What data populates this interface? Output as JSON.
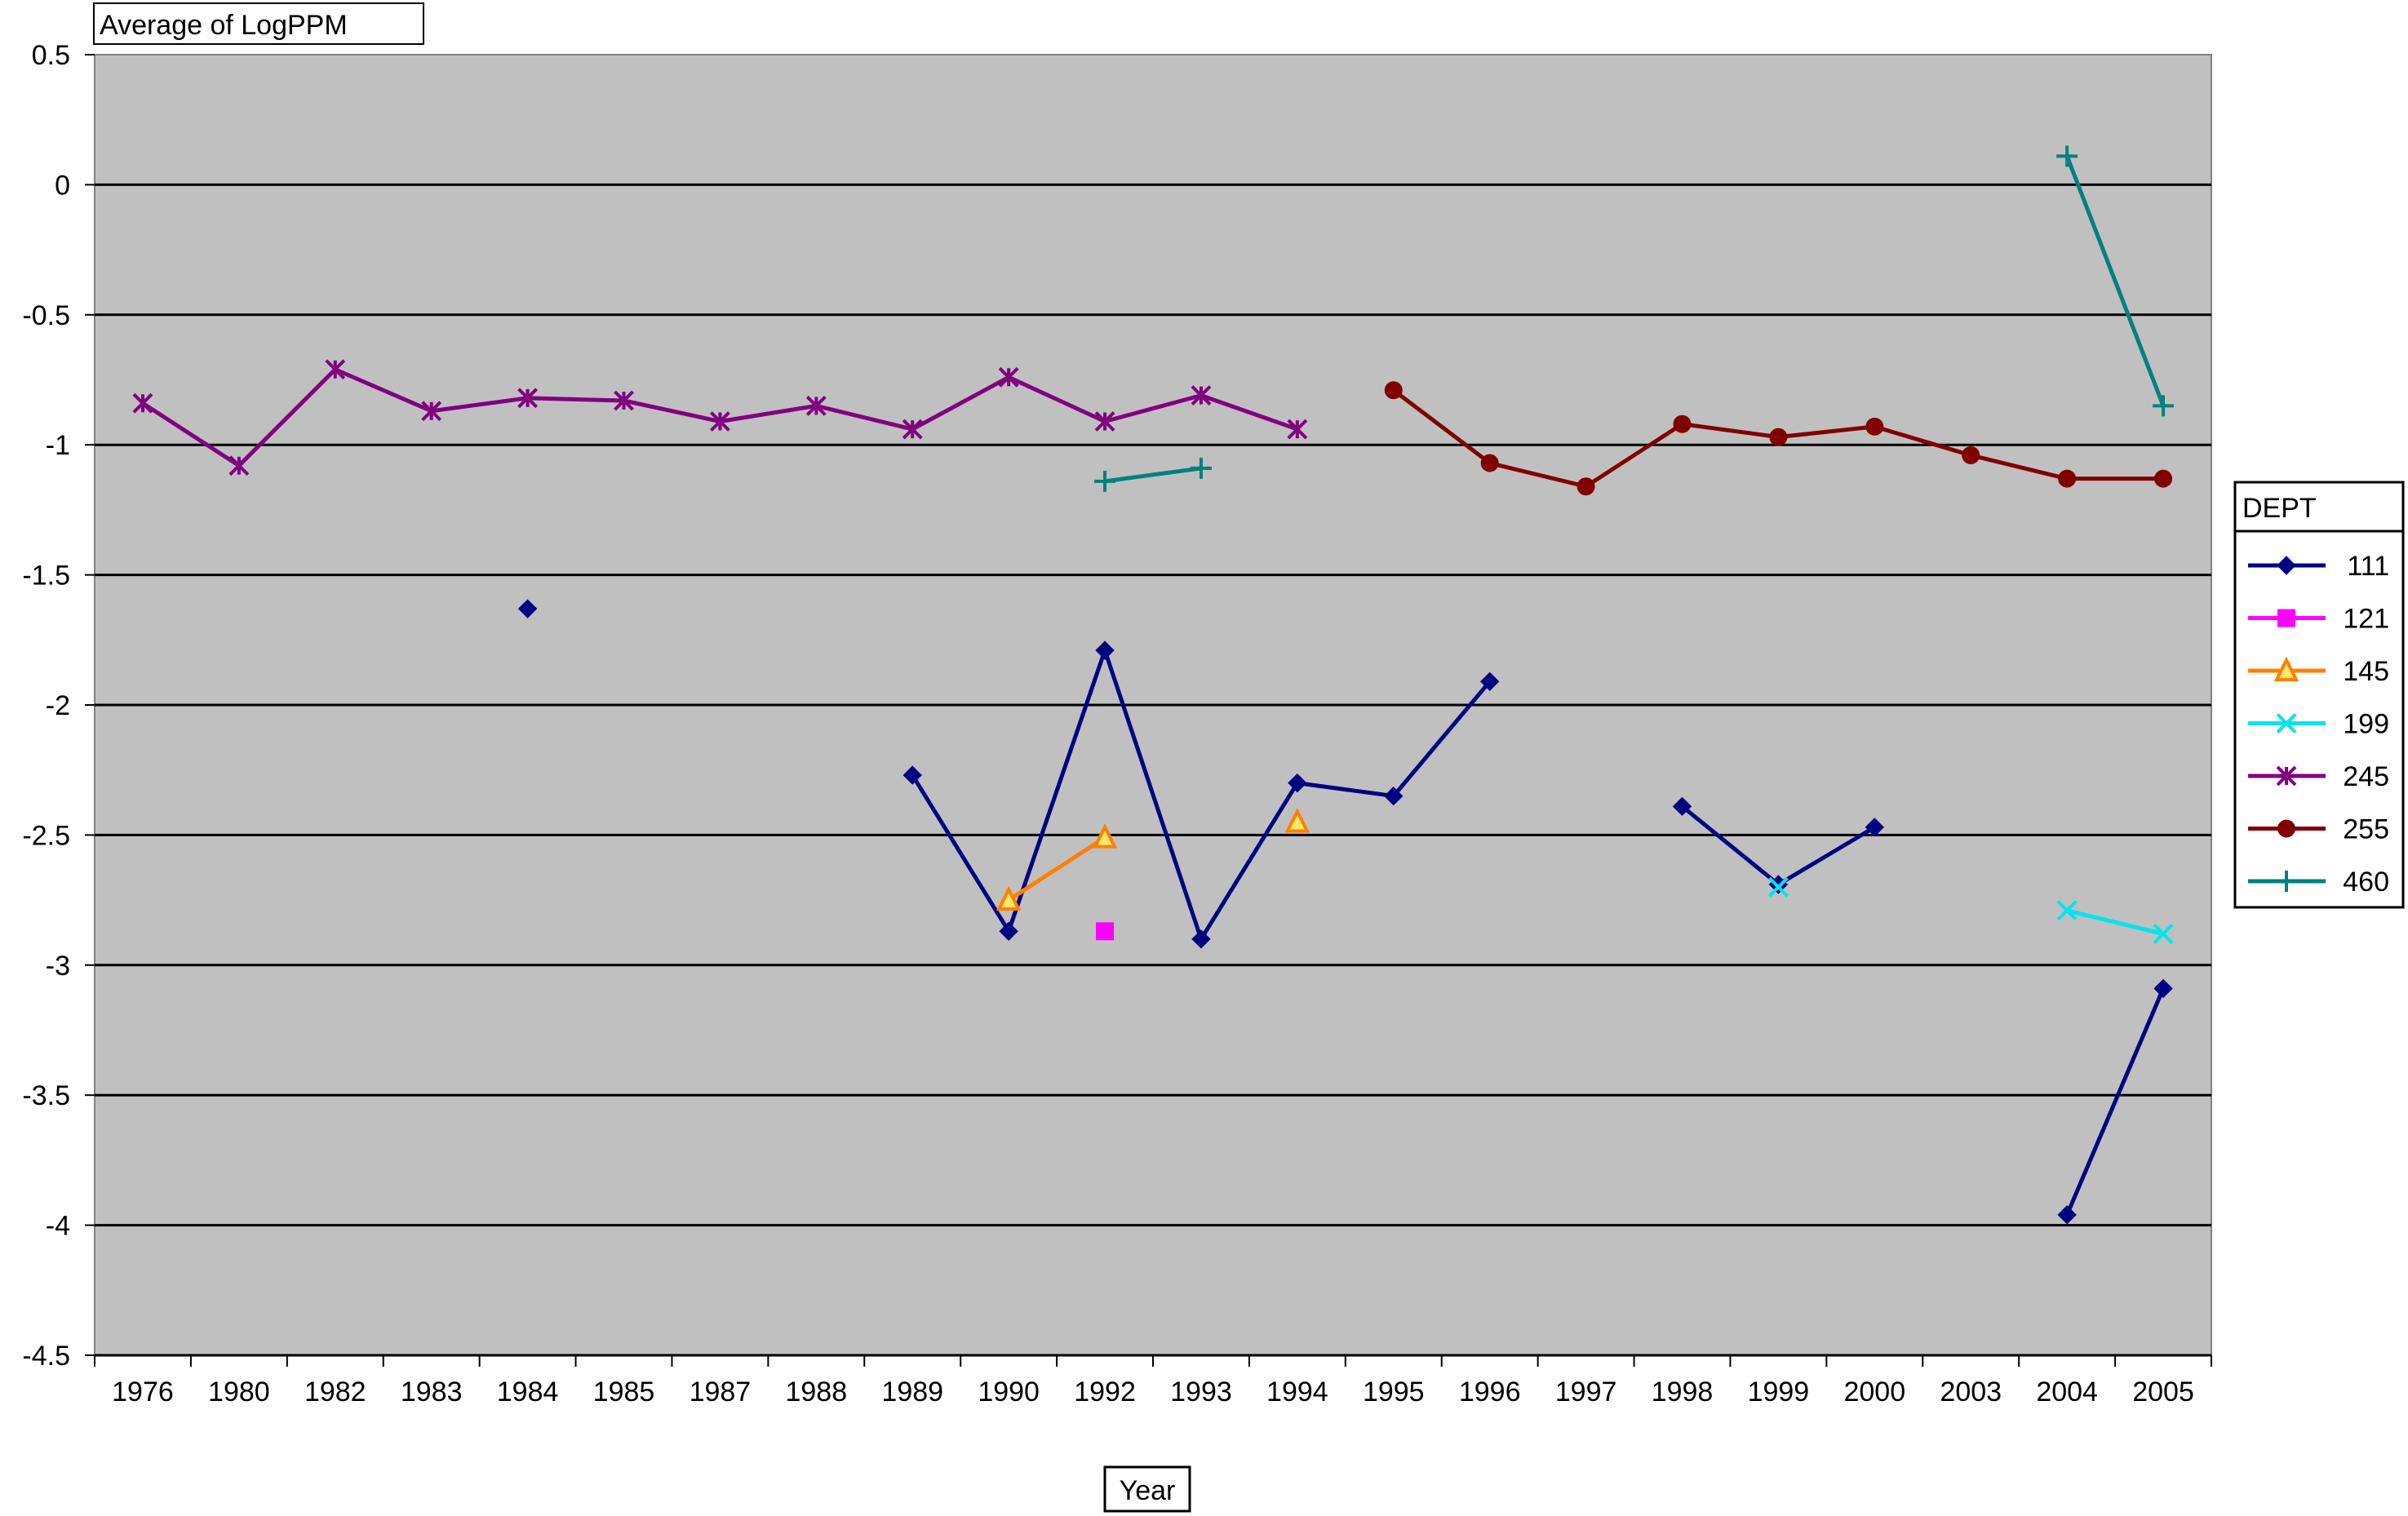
{
  "chart_data": {
    "type": "line",
    "title": "Average of LogPPM",
    "xlabel": "Year",
    "ylabel": "",
    "categories": [
      "1976",
      "1980",
      "1982",
      "1983",
      "1984",
      "1985",
      "1987",
      "1988",
      "1989",
      "1990",
      "1992",
      "1993",
      "1994",
      "1995",
      "1996",
      "1997",
      "1998",
      "1999",
      "2000",
      "2003",
      "2004",
      "2005"
    ],
    "yticks": [
      "0.5",
      "0",
      "-0.5",
      "-1",
      "-1.5",
      "-2",
      "-2.5",
      "-3",
      "-3.5",
      "-4",
      "-4.5"
    ],
    "ylim": [
      -4.5,
      0.5
    ],
    "grid": true,
    "legend_title": "DEPT",
    "legend_position": "right",
    "series": [
      {
        "name": "111",
        "color": "#000080",
        "marker": "diamond",
        "values": [
          null,
          null,
          null,
          null,
          -1.63,
          null,
          null,
          null,
          -2.27,
          -2.87,
          -1.79,
          -2.9,
          -2.3,
          -2.35,
          -1.91,
          null,
          -2.39,
          -2.69,
          -2.47,
          null,
          -3.96,
          -3.09
        ]
      },
      {
        "name": "121",
        "color": "#ff00ff",
        "marker": "square",
        "values": [
          null,
          null,
          null,
          null,
          null,
          null,
          null,
          null,
          null,
          null,
          -2.87,
          null,
          null,
          null,
          null,
          null,
          null,
          null,
          null,
          null,
          null,
          null
        ]
      },
      {
        "name": "145",
        "color": "#ff8000",
        "marker": "triangle",
        "values": [
          null,
          null,
          null,
          null,
          null,
          null,
          null,
          null,
          null,
          -2.75,
          -2.51,
          null,
          -2.45,
          null,
          null,
          null,
          null,
          null,
          null,
          null,
          null,
          null
        ]
      },
      {
        "name": "199",
        "color": "#00e5ee",
        "marker": "x",
        "values": [
          null,
          null,
          null,
          null,
          null,
          null,
          null,
          null,
          null,
          null,
          null,
          null,
          null,
          null,
          null,
          null,
          null,
          -2.7,
          null,
          null,
          -2.79,
          -2.88
        ]
      },
      {
        "name": "245",
        "color": "#800080",
        "marker": "star",
        "values": [
          -0.84,
          -1.08,
          -0.71,
          -0.87,
          -0.82,
          -0.83,
          -0.91,
          -0.85,
          -0.94,
          -0.74,
          -0.91,
          -0.81,
          -0.94,
          null,
          null,
          null,
          null,
          null,
          null,
          null,
          null,
          null
        ]
      },
      {
        "name": "255",
        "color": "#800000",
        "marker": "circle",
        "values": [
          null,
          null,
          null,
          null,
          null,
          null,
          null,
          null,
          null,
          null,
          null,
          null,
          null,
          -0.79,
          -1.07,
          -1.16,
          -0.92,
          -0.97,
          -0.93,
          -1.04,
          -1.13,
          -1.13
        ]
      },
      {
        "name": "460",
        "color": "#008080",
        "marker": "plus",
        "values": [
          null,
          null,
          null,
          null,
          null,
          null,
          null,
          null,
          null,
          null,
          -1.14,
          -1.09,
          null,
          null,
          null,
          null,
          null,
          null,
          null,
          null,
          0.11,
          -0.85
        ]
      }
    ]
  }
}
